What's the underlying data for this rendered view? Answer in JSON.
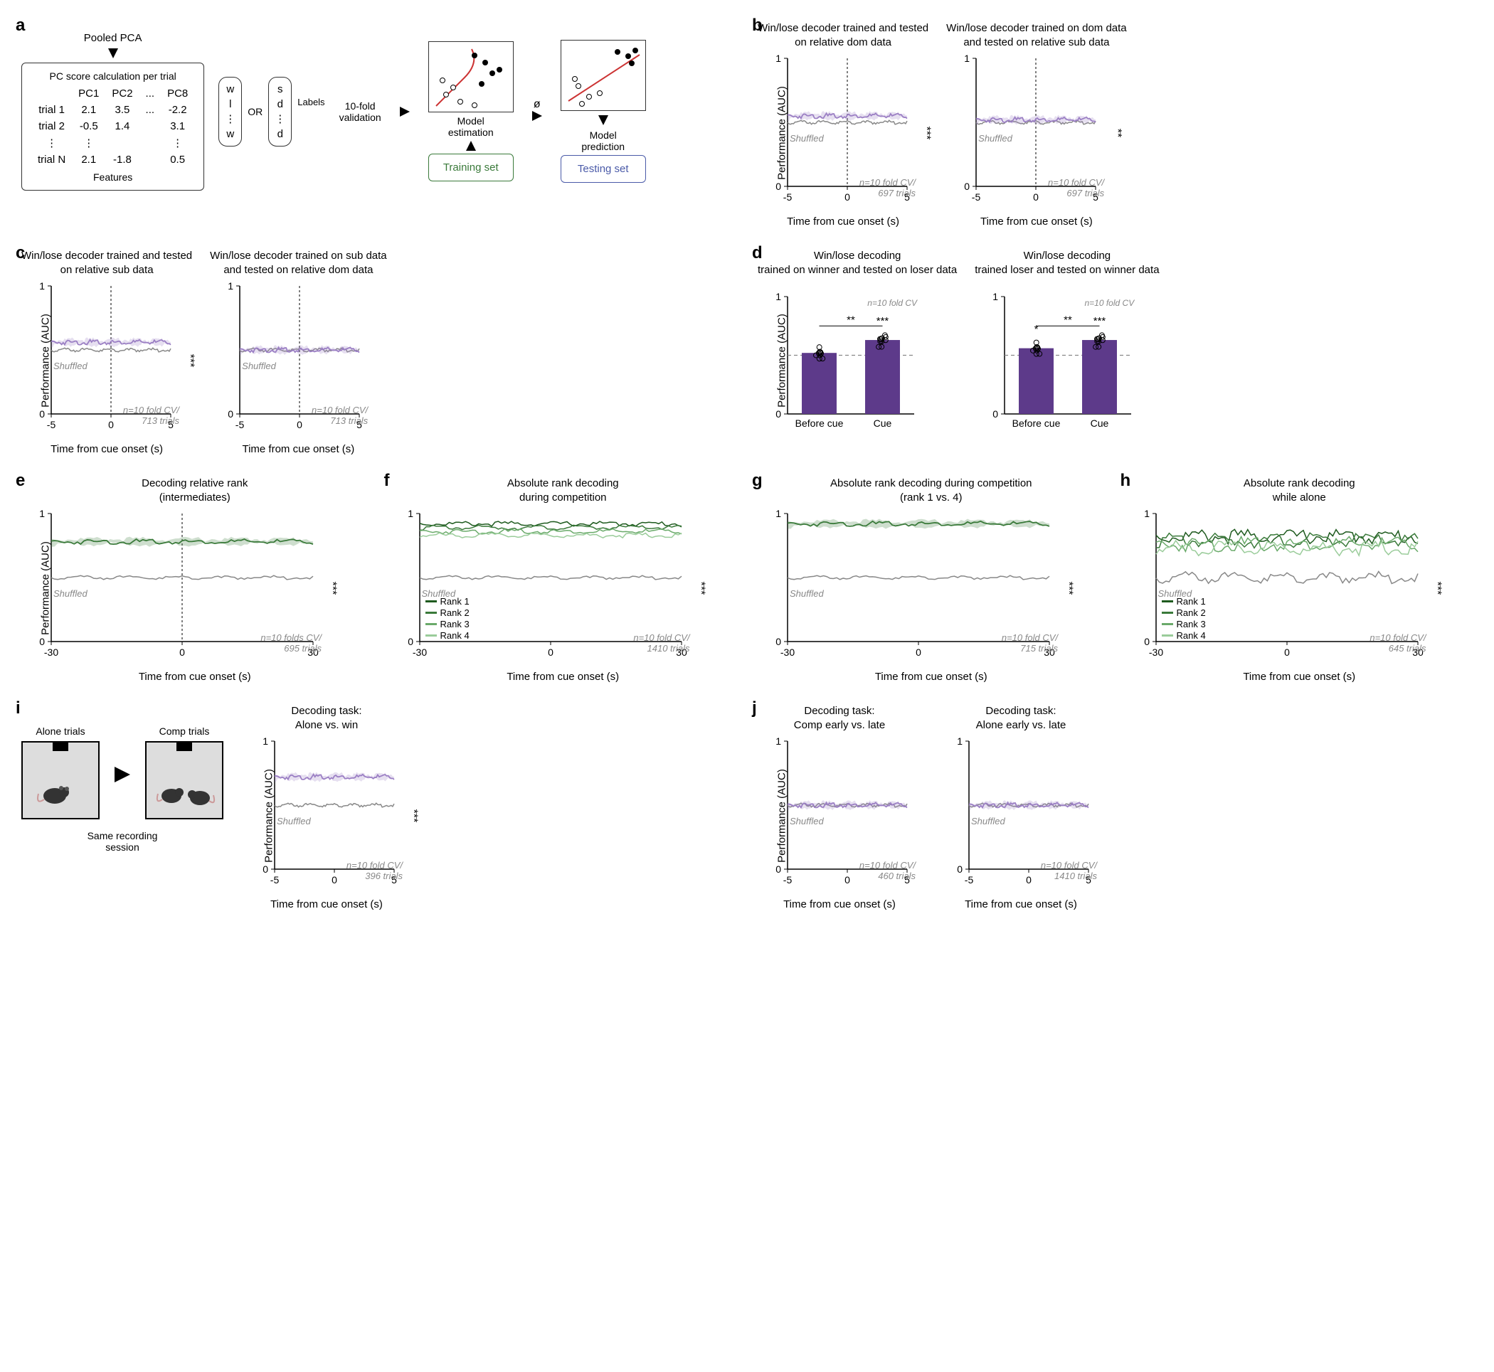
{
  "panel_a": {
    "label": "a",
    "top_text": "Pooled PCA",
    "table_title": "PC score calculation per trial",
    "cols": [
      "PC1",
      "PC2",
      "...",
      "PC8"
    ],
    "rows": [
      "trial 1",
      "trial 2",
      "⋮",
      "trial N"
    ],
    "values": [
      [
        "2.1",
        "3.5",
        "...",
        "-2.2"
      ],
      [
        "-0.5",
        "1.4",
        "",
        "3.1"
      ],
      [
        "⋮",
        "",
        "",
        "⋮"
      ],
      [
        "2.1",
        "-1.8",
        "",
        "0.5"
      ]
    ],
    "features_label": "Features",
    "labels_label": "Labels",
    "label_col1": [
      "w",
      "l",
      "⋮",
      "w"
    ],
    "label_col2": [
      "s",
      "d",
      "⋮",
      "d"
    ],
    "or_text": "OR",
    "cv_text": "10-fold\nvalidation",
    "train_box": "Training set",
    "test_box": "Testing set",
    "model_est": "Model\nestimation",
    "model_pred": "Model\nprediction",
    "phi": "ø"
  },
  "panels": {
    "b1": {
      "title": "Win/lose decoder trained and tested\non relative dom data",
      "xlabel": "Time from cue onset (s)",
      "ylabel": "Performance (AUC)",
      "xlim": [
        -5,
        5
      ],
      "ylim": [
        0,
        1
      ],
      "xticks": [
        -5,
        0,
        5
      ],
      "yticks": [
        0,
        1
      ],
      "note": "n=10 fold CV/\n697 trials",
      "sig": "***",
      "color": "#9b7fc4",
      "shuffle_color": "#888",
      "baseline": 0.55,
      "event_level": 0.64,
      "vline": true
    },
    "b2": {
      "title": "Win/lose decoder trained on dom data\nand tested on relative sub data",
      "xlabel": "Time from cue onset (s)",
      "ylabel": "",
      "xlim": [
        -5,
        5
      ],
      "ylim": [
        0,
        1
      ],
      "xticks": [
        -5,
        0,
        5
      ],
      "yticks": [
        0,
        1
      ],
      "note": "n=10 fold CV/\n697 trials",
      "sig": "**",
      "color": "#9b7fc4",
      "shuffle_color": "#888",
      "baseline": 0.52,
      "event_level": 0.56,
      "vline": true
    },
    "c1": {
      "title": "Win/lose decoder trained and tested\non relative sub data",
      "xlabel": "Time from cue onset (s)",
      "ylabel": "Performance (AUC)",
      "xlim": [
        -5,
        5
      ],
      "ylim": [
        0,
        1
      ],
      "xticks": [
        -5,
        0,
        5
      ],
      "yticks": [
        0,
        1
      ],
      "note": "n=10 fold CV/\n713 trials",
      "sig": "***",
      "color": "#9b7fc4",
      "shuffle_color": "#888",
      "baseline": 0.56,
      "event_level": 0.65,
      "vline": true
    },
    "c2": {
      "title": "Win/lose decoder trained on sub data\nand tested on relative dom data",
      "xlabel": "Time from cue onset (s)",
      "ylabel": "",
      "xlim": [
        -5,
        5
      ],
      "ylim": [
        0,
        1
      ],
      "xticks": [
        -5,
        0,
        5
      ],
      "yticks": [
        0,
        1
      ],
      "note": "n=10 fold CV/\n713 trials",
      "sig": "",
      "color": "#9b7fc4",
      "shuffle_color": "#888",
      "baseline": 0.5,
      "event_level": 0.52,
      "vline": true
    },
    "e": {
      "title": "Decoding relative rank\n(intermediates)",
      "xlabel": "Time from cue onset (s)",
      "ylabel": "Performance (AUC)",
      "xlim": [
        -30,
        30
      ],
      "ylim": [
        0,
        1
      ],
      "xticks": [
        -30,
        0,
        30
      ],
      "yticks": [
        0,
        1
      ],
      "note": "n=10 folds CV/\n695 trials",
      "sig": "***",
      "color": "#3a7a3a",
      "shuffle_color": "#888",
      "baseline": 0.78,
      "event_level": 0.78,
      "vline": true
    },
    "f": {
      "title": "Absolute rank decoding\nduring competition",
      "xlabel": "Time from cue onset (s)",
      "ylabel": "",
      "xlim": [
        -30,
        30
      ],
      "ylim": [
        0,
        1
      ],
      "xticks": [
        -30,
        0,
        30
      ],
      "yticks": [
        0,
        1
      ],
      "note": "n=10 fold CV/\n1410 trials",
      "sig": "***",
      "colors": [
        "#1e5a1e",
        "#3a7a3a",
        "#6aaa6a",
        "#9acc9a"
      ],
      "shuffle_color": "#888",
      "baseline": 0.92,
      "event_level": 0.92,
      "legend": [
        "Rank 1",
        "Rank 2",
        "Rank 3",
        "Rank 4"
      ]
    },
    "g": {
      "title": "Absolute rank decoding during competition\n(rank 1 vs. 4)",
      "xlabel": "Time from cue onset (s)",
      "ylabel": "",
      "xlim": [
        -30,
        30
      ],
      "ylim": [
        0,
        1
      ],
      "xticks": [
        -30,
        0,
        30
      ],
      "yticks": [
        0,
        1
      ],
      "note": "n=10 fold CV/\n715 trials",
      "sig": "***",
      "color": "#3a7a3a",
      "shuffle_color": "#888",
      "baseline": 0.92,
      "event_level": 0.92
    },
    "h": {
      "title": "Absolute rank decoding\nwhile alone",
      "xlabel": "Time from cue onset (s)",
      "ylabel": "",
      "xlim": [
        -30,
        30
      ],
      "ylim": [
        0,
        1
      ],
      "xticks": [
        -30,
        0,
        30
      ],
      "yticks": [
        0,
        1
      ],
      "note": "n=10 fold CV/\n645 trials",
      "sig": "***",
      "colors": [
        "#1e5a1e",
        "#3a7a3a",
        "#6aaa6a",
        "#9acc9a"
      ],
      "shuffle_color": "#888",
      "baseline": 0.82,
      "event_level": 0.82,
      "legend": [
        "Rank 1",
        "Rank 2",
        "Rank 3",
        "Rank 4"
      ],
      "noisy": true
    },
    "i2": {
      "title": "Decoding task:\nAlone vs. win",
      "xlabel": "Time from cue onset (s)",
      "ylabel": "Performance\n(AUC)",
      "xlim": [
        -5,
        5
      ],
      "ylim": [
        0,
        1
      ],
      "xticks": [
        -5,
        0,
        5
      ],
      "yticks": [
        0,
        1
      ],
      "note": "n=10 fold CV/\n396 trials",
      "sig": "***",
      "color": "#9b7fc4",
      "shuffle_color": "#888",
      "baseline": 0.72,
      "event_level": 0.72,
      "shuffle_level": 0.5
    },
    "j1": {
      "title": "Decoding task:\nComp early vs. late",
      "xlabel": "Time from cue onset (s)",
      "ylabel": "Performance\n(AUC)",
      "xlim": [
        -5,
        5
      ],
      "ylim": [
        0,
        1
      ],
      "xticks": [
        -5,
        0,
        5
      ],
      "yticks": [
        0,
        1
      ],
      "note": "n=10 fold CV/\n460 trials",
      "sig": "",
      "color": "#9b7fc4",
      "shuffle_color": "#888",
      "baseline": 0.5,
      "event_level": 0.5
    },
    "j2": {
      "title": "Decoding task:\nAlone early vs. late",
      "xlabel": "Time from cue onset (s)",
      "ylabel": "",
      "xlim": [
        -5,
        5
      ],
      "ylim": [
        0,
        1
      ],
      "xticks": [
        -5,
        0,
        5
      ],
      "yticks": [
        0,
        1
      ],
      "note": "n=10 fold CV/\n1410 trials",
      "sig": "",
      "color": "#9b7fc4",
      "shuffle_color": "#888",
      "baseline": 0.5,
      "event_level": 0.5
    }
  },
  "bars": {
    "d1": {
      "title": "Win/lose decoding\ntrained on winner and tested on loser data",
      "ylabel": "Performance (AUC)",
      "ylim": [
        0,
        1
      ],
      "yticks": [
        0,
        1
      ],
      "cats": [
        "Before cue",
        "Cue"
      ],
      "values": [
        0.52,
        0.63
      ],
      "sigs": [
        "",
        "***"
      ],
      "bracket_sig": "**",
      "note": "n=10 fold CV",
      "color": "#5d3a8a",
      "dash": 0.5
    },
    "d2": {
      "title": "Win/lose decoding\ntrained loser and tested on winner data",
      "ylabel": "",
      "ylim": [
        0,
        1
      ],
      "yticks": [
        0,
        1
      ],
      "cats": [
        "Before cue",
        "Cue"
      ],
      "values": [
        0.56,
        0.63
      ],
      "sigs": [
        "*",
        "***"
      ],
      "bracket_sig": "**",
      "note": "n=10 fold CV",
      "color": "#5d3a8a",
      "dash": 0.5
    }
  },
  "panel_i": {
    "label": "i",
    "alone_label": "Alone trials",
    "comp_label": "Comp trials",
    "session_label": "Same recording\nsession"
  },
  "labels": {
    "b": "b",
    "c": "c",
    "d": "d",
    "e": "e",
    "f": "f",
    "g": "g",
    "h": "h",
    "i": "i",
    "j": "j"
  },
  "shuffled_text": "Shuffled"
}
